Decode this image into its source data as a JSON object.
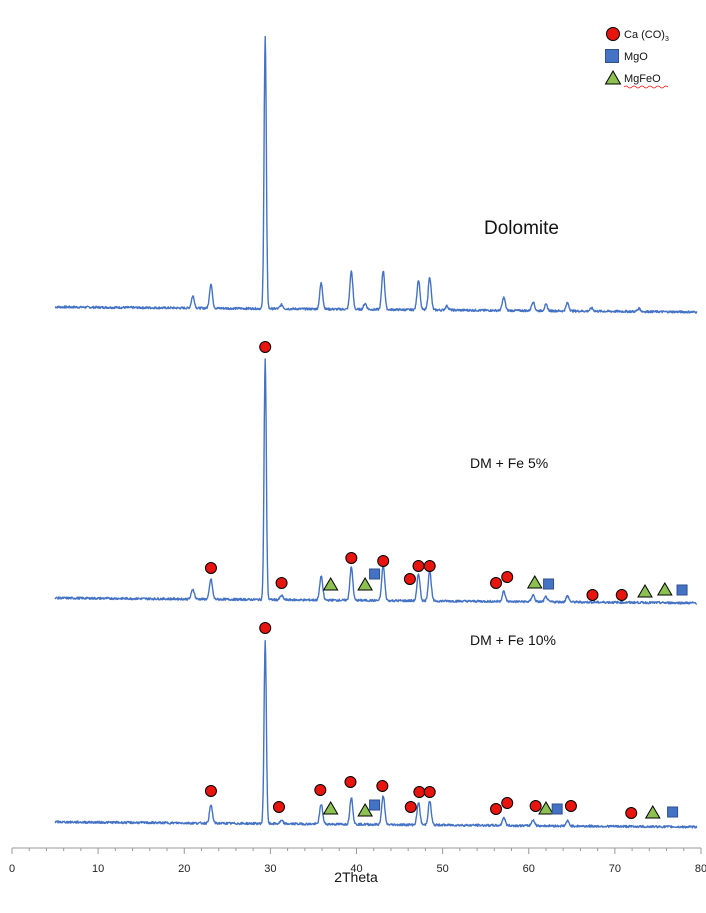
{
  "chart_data": {
    "type": "line",
    "xlabel": "2Theta",
    "xlim": [
      0,
      80
    ],
    "x_ticks": [
      0,
      10,
      20,
      30,
      40,
      50,
      60,
      70,
      80
    ],
    "legend": {
      "placement": "top-right",
      "entries": [
        {
          "marker": "circle",
          "label_main": "Ca (CO)",
          "label_sub": "3",
          "color": "#E8150F"
        },
        {
          "marker": "square",
          "label_main": "MgO",
          "label_sub": "",
          "color": "#4472C4"
        },
        {
          "marker": "triangle",
          "label_main": "MgFeO",
          "label_sub": "",
          "color": "#8CC152"
        }
      ]
    },
    "series": [
      {
        "name": "Dolomite",
        "x_range": [
          5,
          79.5
        ],
        "baseline_start": 5,
        "baseline_end": 0,
        "peaks": [
          {
            "x": 21.0,
            "h": 12
          },
          {
            "x": 23.1,
            "h": 24
          },
          {
            "x": 29.4,
            "h": 272
          },
          {
            "x": 31.3,
            "h": 4
          },
          {
            "x": 35.9,
            "h": 26
          },
          {
            "x": 39.4,
            "h": 38
          },
          {
            "x": 41.0,
            "h": 6
          },
          {
            "x": 43.1,
            "h": 39
          },
          {
            "x": 47.2,
            "h": 30
          },
          {
            "x": 48.5,
            "h": 33
          },
          {
            "x": 50.5,
            "h": 4
          },
          {
            "x": 57.1,
            "h": 13
          },
          {
            "x": 60.5,
            "h": 9
          },
          {
            "x": 62.0,
            "h": 6
          },
          {
            "x": 64.5,
            "h": 8
          },
          {
            "x": 67.3,
            "h": 3
          },
          {
            "x": 72.8,
            "h": 3
          }
        ],
        "markers": []
      },
      {
        "name": "DM + Fe 5%",
        "x_range": [
          5,
          79.5
        ],
        "baseline_start": 5,
        "baseline_end": 0,
        "peaks": [
          {
            "x": 21.0,
            "h": 10
          },
          {
            "x": 23.1,
            "h": 20
          },
          {
            "x": 29.4,
            "h": 240
          },
          {
            "x": 31.3,
            "h": 4
          },
          {
            "x": 35.9,
            "h": 24
          },
          {
            "x": 39.4,
            "h": 33
          },
          {
            "x": 43.1,
            "h": 35
          },
          {
            "x": 47.2,
            "h": 27
          },
          {
            "x": 48.5,
            "h": 30
          },
          {
            "x": 57.1,
            "h": 10
          },
          {
            "x": 60.5,
            "h": 7
          },
          {
            "x": 62.0,
            "h": 5
          },
          {
            "x": 64.5,
            "h": 6
          }
        ],
        "markers": [
          {
            "type": "circle",
            "x": 29.4,
            "y": 256
          },
          {
            "type": "circle",
            "x": 23.1,
            "y": 35
          },
          {
            "type": "circle",
            "x": 31.3,
            "y": 20
          },
          {
            "type": "circle",
            "x": 39.4,
            "y": 45
          },
          {
            "type": "circle",
            "x": 43.1,
            "y": 42
          },
          {
            "type": "circle",
            "x": 47.2,
            "y": 37
          },
          {
            "type": "circle",
            "x": 48.5,
            "y": 37
          },
          {
            "type": "circle",
            "x": 46.2,
            "y": 24
          },
          {
            "type": "circle",
            "x": 56.2,
            "y": 20
          },
          {
            "type": "circle",
            "x": 57.5,
            "y": 26
          },
          {
            "type": "circle",
            "x": 67.4,
            "y": 8
          },
          {
            "type": "circle",
            "x": 70.8,
            "y": 8
          },
          {
            "type": "triangle",
            "x": 37.0,
            "y": 18
          },
          {
            "type": "triangle",
            "x": 41.0,
            "y": 18
          },
          {
            "type": "triangle",
            "x": 60.7,
            "y": 20
          },
          {
            "type": "triangle",
            "x": 73.5,
            "y": 11
          },
          {
            "type": "triangle",
            "x": 75.8,
            "y": 13
          },
          {
            "type": "square",
            "x": 42.1,
            "y": 29
          },
          {
            "type": "square",
            "x": 62.3,
            "y": 19
          },
          {
            "type": "square",
            "x": 77.8,
            "y": 13
          }
        ]
      },
      {
        "name": "DM + Fe 10%",
        "x_range": [
          5,
          79.5
        ],
        "baseline_start": 5,
        "baseline_end": 0,
        "peaks": [
          {
            "x": 23.1,
            "h": 18
          },
          {
            "x": 29.4,
            "h": 183
          },
          {
            "x": 31.3,
            "h": 3
          },
          {
            "x": 35.9,
            "h": 20
          },
          {
            "x": 39.4,
            "h": 27
          },
          {
            "x": 43.1,
            "h": 29
          },
          {
            "x": 47.2,
            "h": 22
          },
          {
            "x": 48.5,
            "h": 24
          },
          {
            "x": 57.1,
            "h": 8
          },
          {
            "x": 60.5,
            "h": 6
          },
          {
            "x": 64.5,
            "h": 5
          }
        ],
        "markers": [
          {
            "type": "circle",
            "x": 29.4,
            "y": 199
          },
          {
            "type": "circle",
            "x": 23.1,
            "y": 36
          },
          {
            "type": "circle",
            "x": 31.0,
            "y": 20
          },
          {
            "type": "circle",
            "x": 35.8,
            "y": 37
          },
          {
            "type": "circle",
            "x": 39.3,
            "y": 45
          },
          {
            "type": "circle",
            "x": 43.0,
            "y": 41
          },
          {
            "type": "circle",
            "x": 46.3,
            "y": 20
          },
          {
            "type": "circle",
            "x": 47.3,
            "y": 35
          },
          {
            "type": "circle",
            "x": 48.5,
            "y": 35
          },
          {
            "type": "circle",
            "x": 56.2,
            "y": 18
          },
          {
            "type": "circle",
            "x": 57.5,
            "y": 24
          },
          {
            "type": "circle",
            "x": 60.8,
            "y": 21
          },
          {
            "type": "circle",
            "x": 64.9,
            "y": 21
          },
          {
            "type": "circle",
            "x": 71.9,
            "y": 14
          },
          {
            "type": "triangle",
            "x": 37.0,
            "y": 18
          },
          {
            "type": "triangle",
            "x": 41.0,
            "y": 16
          },
          {
            "type": "triangle",
            "x": 62.0,
            "y": 18
          },
          {
            "type": "triangle",
            "x": 74.4,
            "y": 14
          },
          {
            "type": "square",
            "x": 42.1,
            "y": 22
          },
          {
            "type": "square",
            "x": 63.3,
            "y": 18
          },
          {
            "type": "square",
            "x": 76.7,
            "y": 15
          }
        ]
      }
    ]
  }
}
